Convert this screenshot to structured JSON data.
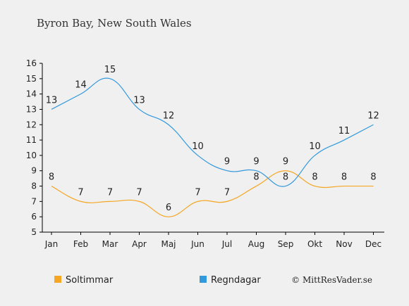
{
  "chart_data": {
    "type": "line",
    "title": "Byron Bay, New South Wales",
    "categories": [
      "Jan",
      "Feb",
      "Mar",
      "Apr",
      "Maj",
      "Jun",
      "Jul",
      "Aug",
      "Sep",
      "Okt",
      "Nov",
      "Dec"
    ],
    "ylim": [
      5,
      16
    ],
    "yticks": [
      5,
      6,
      7,
      8,
      9,
      10,
      11,
      12,
      13,
      14,
      15,
      16
    ],
    "grid": false,
    "legend_position": "bottom-left",
    "series": [
      {
        "name": "Soltimmar",
        "color": "#f5a623",
        "values": [
          8,
          7,
          7,
          7,
          6,
          7,
          7,
          8,
          9,
          8,
          8,
          8
        ]
      },
      {
        "name": "Regndagar",
        "color": "#3399dd",
        "values": [
          13,
          14,
          15,
          13,
          12,
          10,
          9,
          9,
          8,
          10,
          11,
          12
        ]
      }
    ]
  },
  "credit": "© MittResVader.se"
}
